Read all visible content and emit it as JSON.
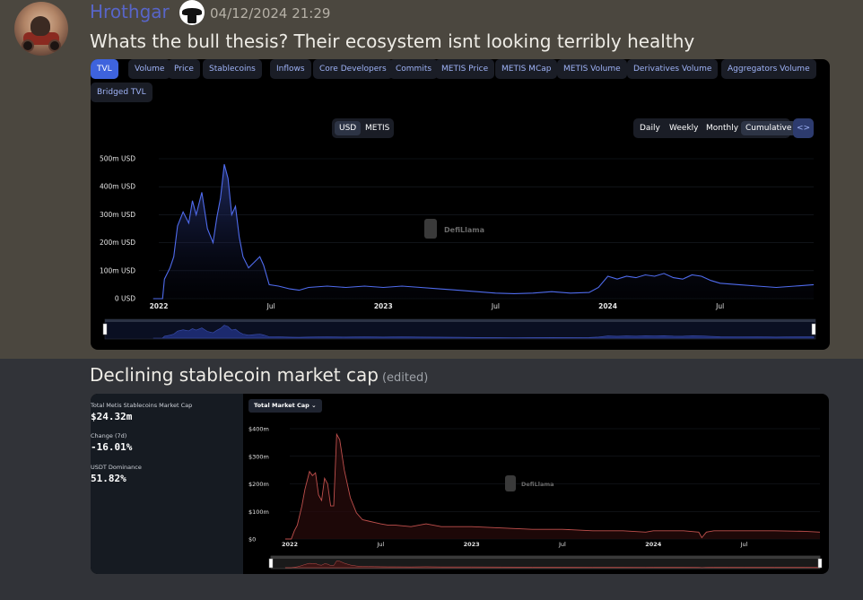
{
  "message1": {
    "username": "Hrothgar",
    "timestamp": "04/12/2024 21:29",
    "text": "Whats the bull thesis?  Their ecosystem isnt looking terribly healthy"
  },
  "message2": {
    "text": "Declining stablecoin market cap",
    "edited": "(edited)"
  },
  "embed1": {
    "tabs": [
      "TVL",
      "Volume",
      "Price",
      "Stablecoins",
      "Inflows",
      "Core Developers",
      "Commits",
      "METIS Price",
      "METIS MCap",
      "METIS Volume",
      "Derivatives Volume",
      "Aggregators Volume",
      "Bridged TVL"
    ],
    "active_tab": "TVL",
    "currency": [
      "USD",
      "METIS"
    ],
    "currency_selected": "USD",
    "periods": [
      "Daily",
      "Weekly",
      "Monthly",
      "Cumulative"
    ],
    "period_selected": "Cumulative",
    "code_label": "<>",
    "watermark": "DefiLlama"
  },
  "embed2": {
    "stats": [
      {
        "label": "Total Metis Stablecoins Market Cap",
        "value": "$24.32m"
      },
      {
        "label": "Change (7d)",
        "value": "-16.01%"
      },
      {
        "label": "USDT Dominance",
        "value": "51.82%"
      }
    ],
    "dropdown": "Total Market Cap",
    "watermark": "DefiLlama"
  },
  "colors": {
    "tvl_line": "#4f6bed",
    "stable_line": "#c0504d",
    "username": "#5865c8"
  },
  "chart_data": [
    {
      "type": "area",
      "y_unit": "USD",
      "yticks": [
        "0 USD",
        "100m USD",
        "200m USD",
        "300m USD",
        "400m USD",
        "500m USD"
      ],
      "ylim": [
        0,
        500
      ],
      "xticks": [
        "2022",
        "Jul",
        "2023",
        "Jul",
        "2024",
        "Jul"
      ],
      "xlim": [
        0,
        35
      ],
      "x_tick_positions": [
        0,
        6,
        12,
        18,
        24,
        30
      ],
      "series": [
        {
          "x": [
            -0.3,
            0.2,
            0.3,
            0.6,
            0.8,
            1.0,
            1.3,
            1.6,
            1.8,
            2.0,
            2.3,
            2.6,
            2.9,
            3.1,
            3.3,
            3.5,
            3.7,
            3.9,
            4.1,
            4.3,
            4.5,
            4.8,
            5.1,
            5.4,
            5.6,
            5.9,
            6.4,
            7.0,
            7.5,
            8.0,
            9.0,
            10.0,
            11.0,
            12.0,
            13.0,
            14.0,
            15.0,
            16.0,
            17.0,
            18.0,
            19.0,
            20.0,
            21.0,
            22.0,
            23.0,
            23.5,
            24.0,
            24.5,
            25.0,
            25.5,
            26.0,
            26.5,
            27.0,
            27.5,
            28.0,
            28.5,
            29.0,
            29.5,
            30.0,
            31.0,
            32.0,
            33.0,
            34.0,
            35.0
          ],
          "y": [
            0,
            0,
            70,
            110,
            150,
            260,
            310,
            270,
            350,
            300,
            380,
            250,
            200,
            290,
            360,
            480,
            430,
            300,
            330,
            220,
            150,
            110,
            130,
            150,
            120,
            50,
            45,
            35,
            30,
            40,
            45,
            40,
            45,
            40,
            45,
            40,
            35,
            30,
            25,
            20,
            18,
            20,
            25,
            20,
            22,
            40,
            80,
            70,
            80,
            75,
            85,
            80,
            90,
            75,
            70,
            85,
            80,
            65,
            55,
            50,
            45,
            40,
            45,
            50
          ]
        }
      ]
    },
    {
      "type": "area",
      "yticks": [
        "$0",
        "$100m",
        "$200m",
        "$300m",
        "$400m"
      ],
      "ylim": [
        0,
        400
      ],
      "xticks": [
        "2022",
        "Jul",
        "2023",
        "Jul",
        "2024",
        "Jul"
      ],
      "xlim": [
        0,
        35
      ],
      "x_tick_positions": [
        0,
        6,
        12,
        18,
        24,
        30
      ],
      "series": [
        {
          "x": [
            -0.3,
            0.1,
            0.3,
            0.5,
            0.8,
            1.0,
            1.3,
            1.5,
            1.7,
            1.9,
            2.1,
            2.3,
            2.5,
            2.7,
            2.9,
            3.1,
            3.3,
            3.6,
            4.0,
            4.4,
            4.8,
            5.2,
            5.6,
            6.0,
            6.5,
            7.0,
            8.0,
            9.0,
            10.0,
            12.0,
            14.0,
            16.0,
            18.0,
            20.0,
            22.0,
            23.5,
            24.0,
            26.0,
            27.0,
            27.2,
            27.5,
            28.0,
            29.0,
            30.0,
            32.0,
            34.0,
            35.0
          ],
          "y": [
            0,
            0,
            30,
            50,
            120,
            180,
            245,
            230,
            240,
            160,
            140,
            220,
            200,
            120,
            120,
            380,
            360,
            250,
            150,
            95,
            70,
            65,
            60,
            55,
            50,
            50,
            45,
            55,
            45,
            45,
            40,
            35,
            35,
            30,
            30,
            25,
            30,
            30,
            25,
            5,
            25,
            30,
            30,
            30,
            30,
            28,
            25
          ]
        }
      ]
    }
  ]
}
